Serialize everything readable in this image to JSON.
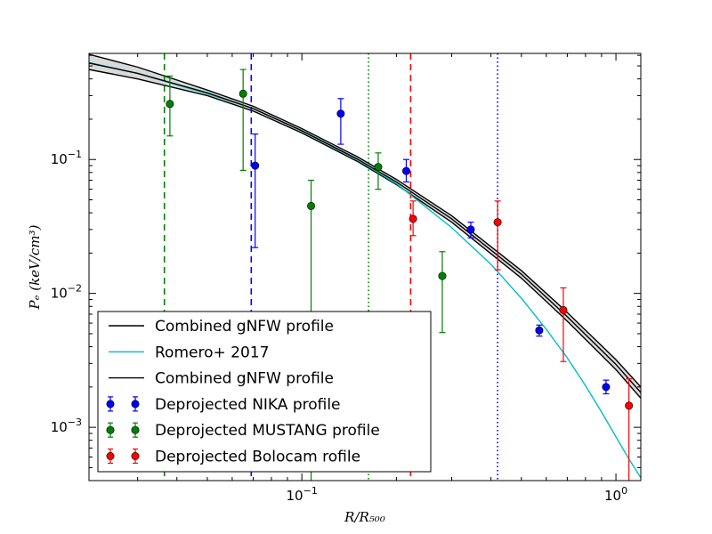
{
  "chart_data": {
    "type": "scatter",
    "x_scale": "log",
    "y_scale": "log",
    "xlim": [
      0.021,
      1.2
    ],
    "ylim": [
      0.0004,
      0.62
    ],
    "xlabel": "R/R₅₀₀",
    "ylabel": "Pₑ  (keV/cm³)",
    "x_ticks": [
      {
        "value": 0.1,
        "base": "10",
        "exp": "−1"
      },
      {
        "value": 1.0,
        "base": "10",
        "exp": "0"
      }
    ],
    "y_ticks": [
      {
        "value": 0.001,
        "base": "10",
        "exp": "−3"
      },
      {
        "value": 0.01,
        "base": "10",
        "exp": "−2"
      },
      {
        "value": 0.1,
        "base": "10",
        "exp": "−1"
      }
    ],
    "vertical_lines": [
      {
        "x": 0.0365,
        "color": "#008000",
        "style": "dashed"
      },
      {
        "x": 0.069,
        "color": "#0000ff",
        "style": "dashed"
      },
      {
        "x": 0.163,
        "color": "#008000",
        "style": "dotted"
      },
      {
        "x": 0.222,
        "color": "#ff0000",
        "style": "dashed"
      },
      {
        "x": 0.42,
        "color": "#0000ff",
        "style": "dotted"
      }
    ],
    "band": {
      "upper": [
        [
          0.021,
          0.61
        ],
        [
          0.03,
          0.49
        ],
        [
          0.05,
          0.33
        ],
        [
          0.07,
          0.25
        ],
        [
          0.1,
          0.17
        ],
        [
          0.15,
          0.105
        ],
        [
          0.2,
          0.071
        ],
        [
          0.3,
          0.038
        ],
        [
          0.5,
          0.0148
        ],
        [
          0.7,
          0.0072
        ],
        [
          1.0,
          0.0032
        ],
        [
          1.2,
          0.002
        ]
      ],
      "lower": [
        [
          0.021,
          0.47
        ],
        [
          0.03,
          0.4
        ],
        [
          0.05,
          0.3
        ],
        [
          0.07,
          0.23
        ],
        [
          0.1,
          0.158
        ],
        [
          0.15,
          0.097
        ],
        [
          0.2,
          0.065
        ],
        [
          0.3,
          0.034
        ],
        [
          0.5,
          0.013
        ],
        [
          0.7,
          0.0062
        ],
        [
          1.0,
          0.0027
        ],
        [
          1.2,
          0.00165
        ]
      ],
      "fill": "#d9d9d9"
    },
    "romero_curve": [
      [
        0.021,
        0.53
      ],
      [
        0.03,
        0.44
      ],
      [
        0.05,
        0.31
      ],
      [
        0.07,
        0.24
      ],
      [
        0.1,
        0.163
      ],
      [
        0.15,
        0.1
      ],
      [
        0.2,
        0.066
      ],
      [
        0.3,
        0.031
      ],
      [
        0.4,
        0.0165
      ],
      [
        0.5,
        0.0092
      ],
      [
        0.6,
        0.0054
      ],
      [
        0.7,
        0.0033
      ],
      [
        0.8,
        0.00205
      ],
      [
        0.9,
        0.0013
      ],
      [
        1.0,
        0.00085
      ],
      [
        1.1,
        0.00058
      ],
      [
        1.2,
        0.00042
      ]
    ],
    "gnfw_center": [
      [
        0.021,
        0.525
      ],
      [
        0.03,
        0.44
      ],
      [
        0.05,
        0.315
      ],
      [
        0.07,
        0.24
      ],
      [
        0.1,
        0.164
      ],
      [
        0.15,
        0.101
      ],
      [
        0.2,
        0.068
      ],
      [
        0.3,
        0.036
      ],
      [
        0.5,
        0.0139
      ],
      [
        0.7,
        0.0067
      ],
      [
        1.0,
        0.00295
      ],
      [
        1.2,
        0.00182
      ]
    ],
    "series": [
      {
        "name": "Deprojected NIKA profile",
        "color": "#0000ff",
        "points": [
          {
            "x": 0.071,
            "y": 0.09,
            "ylo": 0.022,
            "yhi": 0.155
          },
          {
            "x": 0.133,
            "y": 0.22,
            "ylo": 0.13,
            "yhi": 0.285
          },
          {
            "x": 0.215,
            "y": 0.082,
            "ylo": 0.068,
            "yhi": 0.1
          },
          {
            "x": 0.345,
            "y": 0.03,
            "ylo": 0.026,
            "yhi": 0.034
          },
          {
            "x": 0.57,
            "y": 0.0053,
            "ylo": 0.0048,
            "yhi": 0.0058
          },
          {
            "x": 0.93,
            "y": 0.002,
            "ylo": 0.00178,
            "yhi": 0.00225
          }
        ]
      },
      {
        "name": "Deprojected MUSTANG profile",
        "color": "#008000",
        "points": [
          {
            "x": 0.038,
            "y": 0.26,
            "ylo": 0.15,
            "yhi": 0.42
          },
          {
            "x": 0.065,
            "y": 0.31,
            "ylo": 0.083,
            "yhi": 0.47
          },
          {
            "x": 0.107,
            "y": 0.045,
            "ylo": 0.0004,
            "yhi": 0.07
          },
          {
            "x": 0.175,
            "y": 0.088,
            "ylo": 0.06,
            "yhi": 0.112
          },
          {
            "x": 0.28,
            "y": 0.0135,
            "ylo": 0.0051,
            "yhi": 0.0205
          }
        ]
      },
      {
        "name": "Deprojected Bolocam rofile",
        "color": "#ff0000",
        "points": [
          {
            "x": 0.226,
            "y": 0.036,
            "ylo": 0.027,
            "yhi": 0.049
          },
          {
            "x": 0.42,
            "y": 0.034,
            "ylo": 0.015,
            "yhi": 0.049
          },
          {
            "x": 0.68,
            "y": 0.0075,
            "ylo": 0.0031,
            "yhi": 0.011
          },
          {
            "x": 1.1,
            "y": 0.00145,
            "ylo": 0.0004,
            "yhi": 0.0023
          }
        ]
      }
    ],
    "legend": {
      "placement": "lower-left",
      "entries": [
        {
          "label": "Combined gNFW profile",
          "kind": "line",
          "color": "#000000"
        },
        {
          "label": "Romero+ 2017",
          "kind": "line",
          "color": "#00bfbf"
        },
        {
          "label": "Combined gNFW profile",
          "kind": "line",
          "color": "#000000"
        },
        {
          "label": "Deprojected NIKA profile",
          "kind": "marker",
          "color": "#0000ff"
        },
        {
          "label": "Deprojected MUSTANG profile",
          "kind": "marker",
          "color": "#008000"
        },
        {
          "label": "Deprojected Bolocam rofile",
          "kind": "marker",
          "color": "#ff0000"
        }
      ]
    }
  }
}
